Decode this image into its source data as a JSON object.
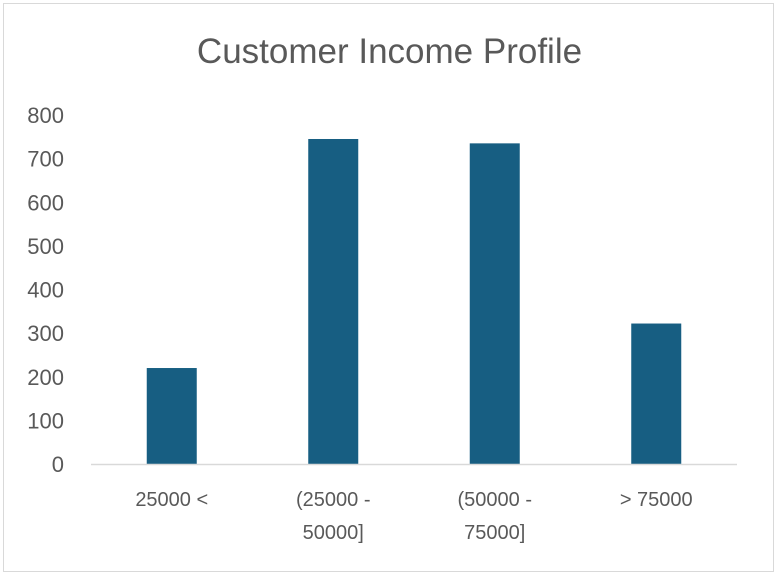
{
  "chart_data": {
    "type": "bar",
    "title": "Customer Income Profile",
    "xlabel": "",
    "ylabel": "",
    "categories": [
      "25000 <",
      "(25000 - 50000]",
      "(50000 - 75000]",
      "> 75000"
    ],
    "category_lines": [
      [
        "25000 <"
      ],
      [
        "(25000 -",
        "50000]"
      ],
      [
        "(50000 -",
        "75000]"
      ],
      [
        "> 75000"
      ]
    ],
    "values": [
      220,
      745,
      735,
      322
    ],
    "ylim": [
      0,
      800
    ],
    "yticks": [
      0,
      100,
      200,
      300,
      400,
      500,
      600,
      700,
      800
    ],
    "grid": false,
    "legend": "none",
    "bar_color": "#175E82",
    "axis_color": "#d9d9d9",
    "text_color": "#595959"
  }
}
